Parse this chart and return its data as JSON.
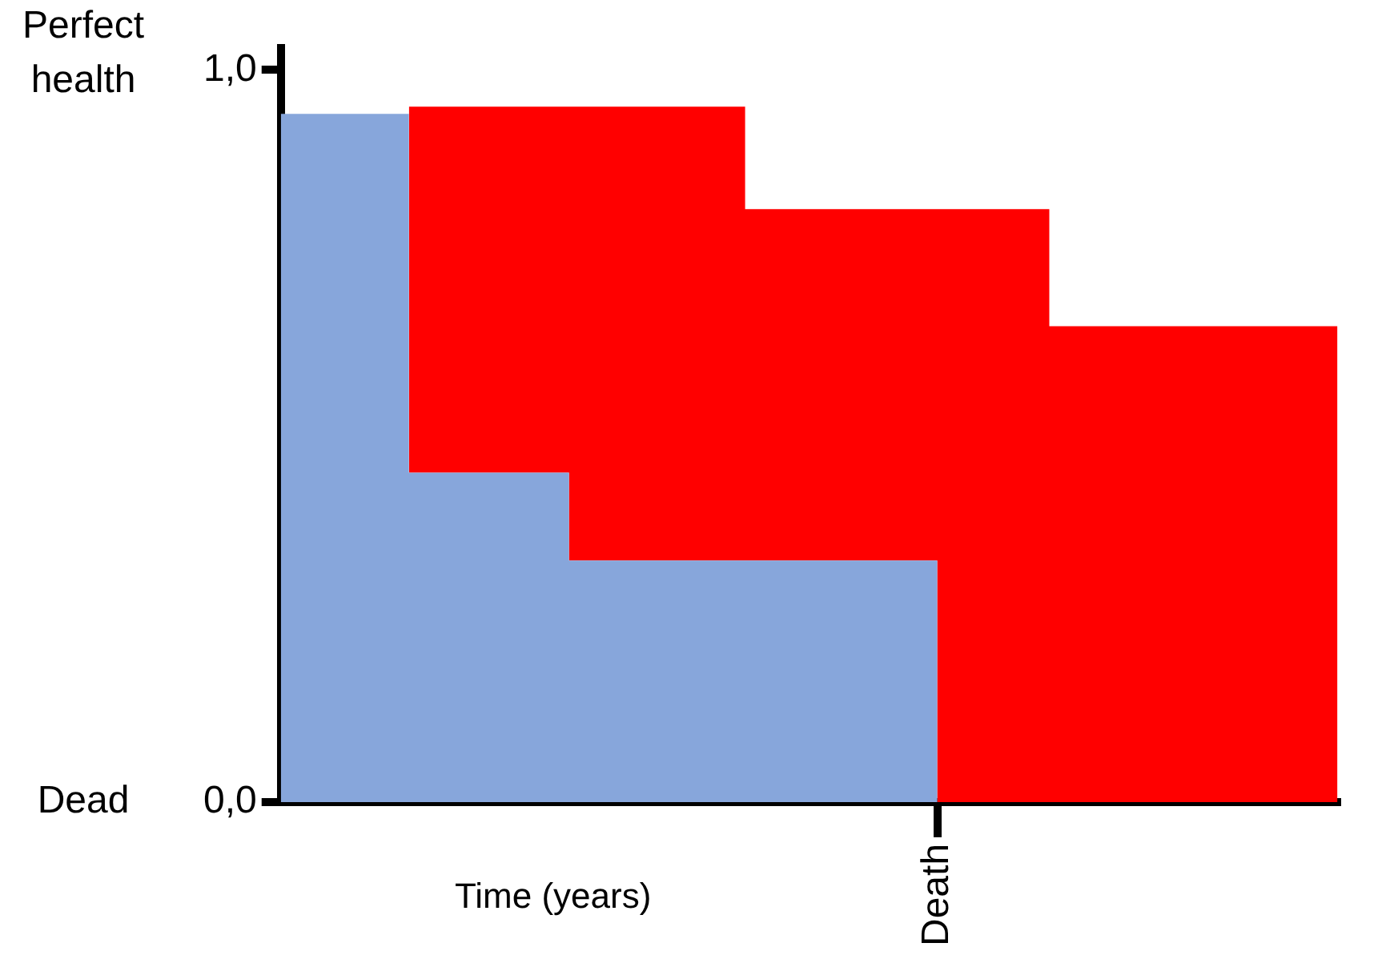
{
  "chart_data": {
    "type": "area",
    "stacked": true,
    "xlabel": "Time (years)",
    "categories": [
      null,
      null,
      null,
      null,
      null,
      null,
      null,
      null,
      null,
      null,
      null,
      null,
      null,
      null,
      null,
      null,
      null,
      null,
      null,
      null,
      null,
      null,
      null,
      null,
      null,
      null,
      null,
      null,
      null,
      null,
      null,
      null,
      null,
      null,
      null,
      null,
      null,
      null,
      null,
      null,
      null,
      "Death",
      null,
      null,
      null,
      null,
      null,
      null,
      null,
      null,
      null,
      null,
      null,
      null,
      null,
      null,
      null,
      null,
      null,
      null,
      null,
      null,
      null,
      null,
      null,
      null,
      null
    ],
    "ylim": [
      0,
      1.03
    ],
    "yticks": [
      {
        "value": 0,
        "label": "0,0"
      },
      {
        "value": 1,
        "label": "1,0"
      }
    ],
    "grid": false,
    "legend": false,
    "annotations": [
      "Dead",
      "Perfect health"
    ],
    "series": [
      {
        "color": "#87a6db",
        "values": [
          0.94,
          0.94,
          0.94,
          0.94,
          0.94,
          0.94,
          0.94,
          0.94,
          0.45,
          0.45,
          0.45,
          0.45,
          0.45,
          0.45,
          0.45,
          0.45,
          0.45,
          0.45,
          0.33,
          0.33,
          0.33,
          0.33,
          0.33,
          0.33,
          0.33,
          0.33,
          0.33,
          0.33,
          0.33,
          0.33,
          0.33,
          0.33,
          0.33,
          0.33,
          0.33,
          0.33,
          0.33,
          0.33,
          0.33,
          0.33,
          0.33,
          0,
          0,
          0,
          0,
          0,
          0,
          0,
          0,
          0,
          0,
          0,
          0,
          0,
          0,
          0,
          0,
          0,
          0,
          0,
          0,
          0,
          0,
          0,
          0,
          0,
          0
        ]
      },
      {
        "color": "#ff0000",
        "values": [
          null,
          null,
          null,
          null,
          null,
          null,
          null,
          null,
          0.5,
          0.5,
          0.5,
          0.5,
          0.5,
          0.5,
          0.5,
          0.5,
          0.5,
          0.5,
          0.62,
          0.62,
          0.62,
          0.62,
          0.62,
          0.62,
          0.62,
          0.62,
          0.62,
          0.62,
          0.62,
          0.48,
          0.48,
          0.48,
          0.48,
          0.48,
          0.48,
          0.48,
          0.48,
          0.48,
          0.48,
          0.48,
          0.48,
          0.81,
          0.81,
          0.81,
          0.81,
          0.81,
          0.81,
          0.81,
          0.65,
          0.65,
          0.65,
          0.65,
          0.65,
          0.65,
          0.65,
          0.65,
          0.65,
          0.65,
          0.65,
          0.65,
          0.65,
          0.65,
          0.65,
          0.65,
          0.65,
          0.65,
          0.65
        ]
      }
    ]
  }
}
